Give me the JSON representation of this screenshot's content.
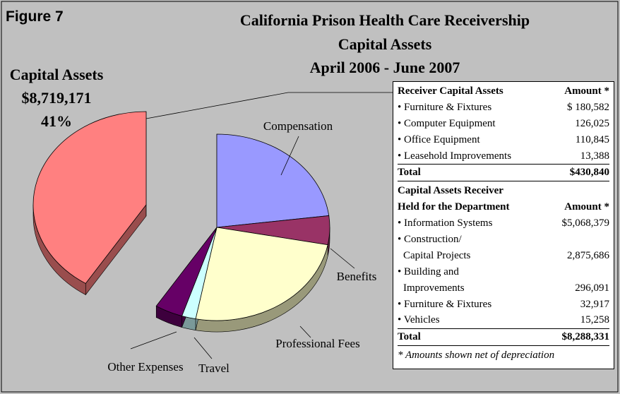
{
  "chart_data": {
    "type": "pie",
    "figure_label": "Figure 7",
    "title": [
      "California Prison Health Care Receivership",
      "Capital Assets",
      "April 2006 - June 2007"
    ],
    "categories": [
      "Compensation",
      "Benefits",
      "Professional Fees",
      "Travel",
      "Other Expenses",
      "Capital Assets"
    ],
    "values": [
      23,
      5,
      25,
      2,
      4,
      41
    ],
    "value_labels": [
      null,
      null,
      null,
      null,
      null,
      "41%"
    ],
    "colors": [
      "#9999ff",
      "#993366",
      "#ffffcc",
      "#ccffff",
      "#660066",
      "#ff8080"
    ],
    "capital_assets_amount": "$8,719,171"
  },
  "table": {
    "sections": [
      {
        "header": [
          "Receiver Capital Assets"
        ],
        "amount_header": "Amount *",
        "rows": [
          {
            "lines": [
              "• Furniture & Fixtures"
            ],
            "amount": "$ 180,582"
          },
          {
            "lines": [
              "• Computer Equipment"
            ],
            "amount": "126,025"
          },
          {
            "lines": [
              "• Office Equipment"
            ],
            "amount": "110,845"
          },
          {
            "lines": [
              "• Leasehold Improvements"
            ],
            "amount": "13,388"
          }
        ],
        "total": {
          "label": "Total",
          "amount": "$430,840"
        }
      },
      {
        "header": [
          "Capital Assets Receiver",
          "Held for the Department"
        ],
        "amount_header": "Amount *",
        "rows": [
          {
            "lines": [
              "• Information Systems"
            ],
            "amount": "$5,068,379"
          },
          {
            "lines": [
              "• Construction/",
              "Capital Projects"
            ],
            "amount": "2,875,686"
          },
          {
            "lines": [
              "• Building and",
              "Improvements"
            ],
            "amount": "296,091"
          },
          {
            "lines": [
              "• Furniture & Fixtures"
            ],
            "amount": "32,917"
          },
          {
            "lines": [
              "• Vehicles"
            ],
            "amount": "15,258"
          }
        ],
        "total": {
          "label": "Total",
          "amount": "$8,288,331"
        }
      }
    ],
    "footnote": "* Amounts shown net of depreciation"
  }
}
